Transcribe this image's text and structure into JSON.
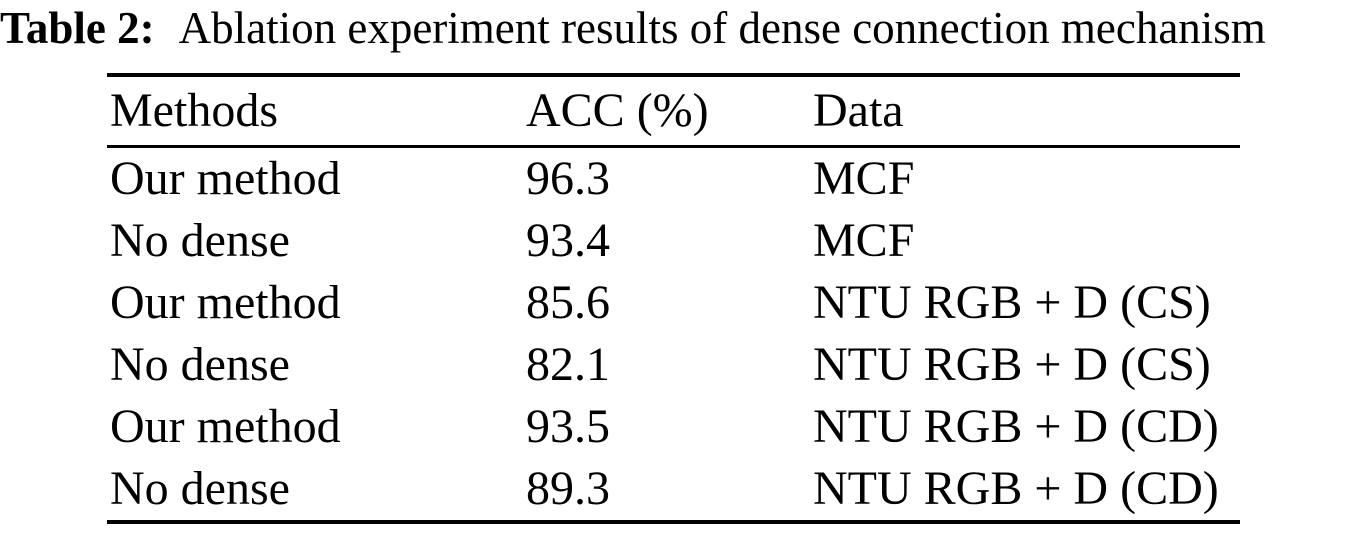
{
  "caption": {
    "label": "Table 2:",
    "text": "Ablation experiment results of dense connection mechanism"
  },
  "table": {
    "columns": {
      "methods": "Methods",
      "acc": "ACC (%)",
      "data": "Data"
    },
    "rows": [
      {
        "method": "Our method",
        "acc": "96.3",
        "data": "MCF"
      },
      {
        "method": "No dense",
        "acc": "93.4",
        "data": "MCF"
      },
      {
        "method": "Our method",
        "acc": "85.6",
        "data": "NTU RGB + D (CS)"
      },
      {
        "method": "No dense",
        "acc": "82.1",
        "data": "NTU RGB + D (CS)"
      },
      {
        "method": "Our method",
        "acc": "93.5",
        "data": "NTU RGB + D (CD)"
      },
      {
        "method": "No dense",
        "acc": "89.3",
        "data": "NTU RGB + D (CD)"
      }
    ]
  },
  "chart_data": {
    "type": "table",
    "title": "Table 2: Ablation experiment results of dense connection mechanism",
    "columns": [
      "Methods",
      "ACC (%)",
      "Data"
    ],
    "rows": [
      [
        "Our method",
        96.3,
        "MCF"
      ],
      [
        "No dense",
        93.4,
        "MCF"
      ],
      [
        "Our method",
        85.6,
        "NTU RGB + D (CS)"
      ],
      [
        "No dense",
        82.1,
        "NTU RGB + D (CS)"
      ],
      [
        "Our method",
        93.5,
        "NTU RGB + D (CD)"
      ],
      [
        "No dense",
        89.3,
        "NTU RGB + D (CD)"
      ]
    ]
  },
  "colors": {
    "text": "#000000",
    "background": "#ffffff",
    "rule": "#000000"
  }
}
